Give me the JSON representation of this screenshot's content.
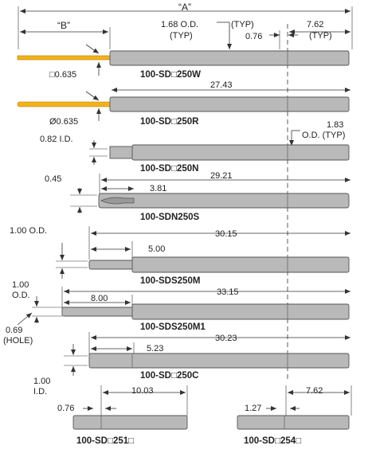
{
  "dimensions": {
    "a": "“A”",
    "b": "“B”",
    "od_168": "1.68  O.D.",
    "typ_1": "(TYP)",
    "typ_2": "(TYP)",
    "d076": "0.76",
    "d762": "7.62",
    "typ_3": "(TYP)",
    "sq0635": "□0.635",
    "d2743": "27.43",
    "dia0635": "Ø0.635",
    "d183": "1.83",
    "od_typ": "O.D. (TYP)",
    "id082": "0.82  I.D.",
    "d045": "0.45",
    "d2921": "29.21",
    "d381": "3.81",
    "od100": "1.00  O.D.",
    "d3015": "30.15",
    "d500": "5.00",
    "d100_a": "1.00",
    "od_b": "O.D.",
    "d3315": "33.15",
    "d800": "8.00",
    "d069": "0.69",
    "hole": "(HOLE)",
    "d3023": "30.23",
    "d523": "5.23",
    "d100_b": "1.00",
    "id_b": "I.D.",
    "d076b": "0.76",
    "d1003": "10.03",
    "d127": "1.27",
    "d762b": "7.62"
  },
  "parts": [
    {
      "label": "100-SD□250W"
    },
    {
      "label": "100-SD□250R"
    },
    {
      "label": "100-SD□250N"
    },
    {
      "label": "100-SDN250S"
    },
    {
      "label": "100-SDS250M"
    },
    {
      "label": "100-SDS250M1"
    },
    {
      "label": "100-SD□250C"
    },
    {
      "label": "100-SD□251□"
    },
    {
      "label": "100-SD□254□"
    }
  ],
  "colors": {
    "pin": "#b9b9b9",
    "gold_wire": "#f3b21a",
    "line": "#333333"
  }
}
